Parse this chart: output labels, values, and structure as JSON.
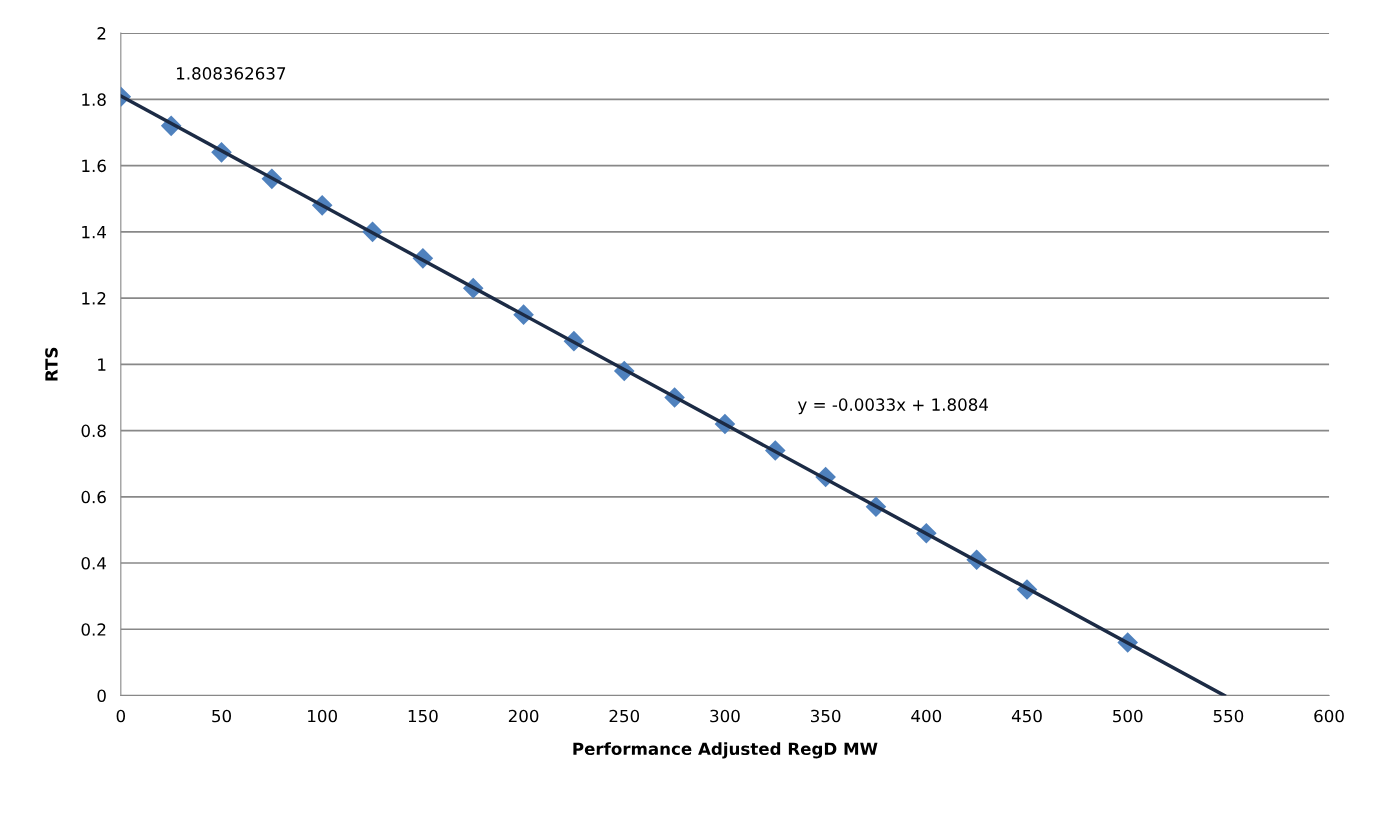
{
  "chart_data": {
    "type": "scatter",
    "xlabel": "Performance Adjusted RegD MW",
    "ylabel": "RTS",
    "xlim": [
      0,
      600
    ],
    "xticks": [
      0,
      50,
      100,
      150,
      200,
      250,
      300,
      350,
      400,
      450,
      500,
      550,
      600
    ],
    "ylim": [
      0,
      2
    ],
    "yticks": [
      0,
      0.2,
      0.4,
      0.6,
      0.8,
      1,
      1.2,
      1.4,
      1.6,
      1.8,
      2
    ],
    "grid": "y",
    "series": [
      {
        "marker": "diamond",
        "color": "#4f81bd",
        "x": [
          0,
          25,
          50,
          75,
          100,
          125,
          150,
          175,
          200,
          225,
          250,
          275,
          300,
          325,
          350,
          375,
          400,
          425,
          450,
          500
        ],
        "values": [
          1.808,
          1.72,
          1.64,
          1.56,
          1.48,
          1.4,
          1.32,
          1.23,
          1.15,
          1.07,
          0.98,
          0.9,
          0.82,
          0.74,
          0.66,
          0.57,
          0.49,
          0.41,
          0.32,
          0.16
        ]
      },
      {
        "type": "line",
        "color": "#1c2b45",
        "x": [
          0,
          548
        ],
        "values": [
          1.81,
          0
        ]
      }
    ],
    "annotations": [
      "1.808362637",
      "y = -0.0033x + 1.8084"
    ]
  }
}
